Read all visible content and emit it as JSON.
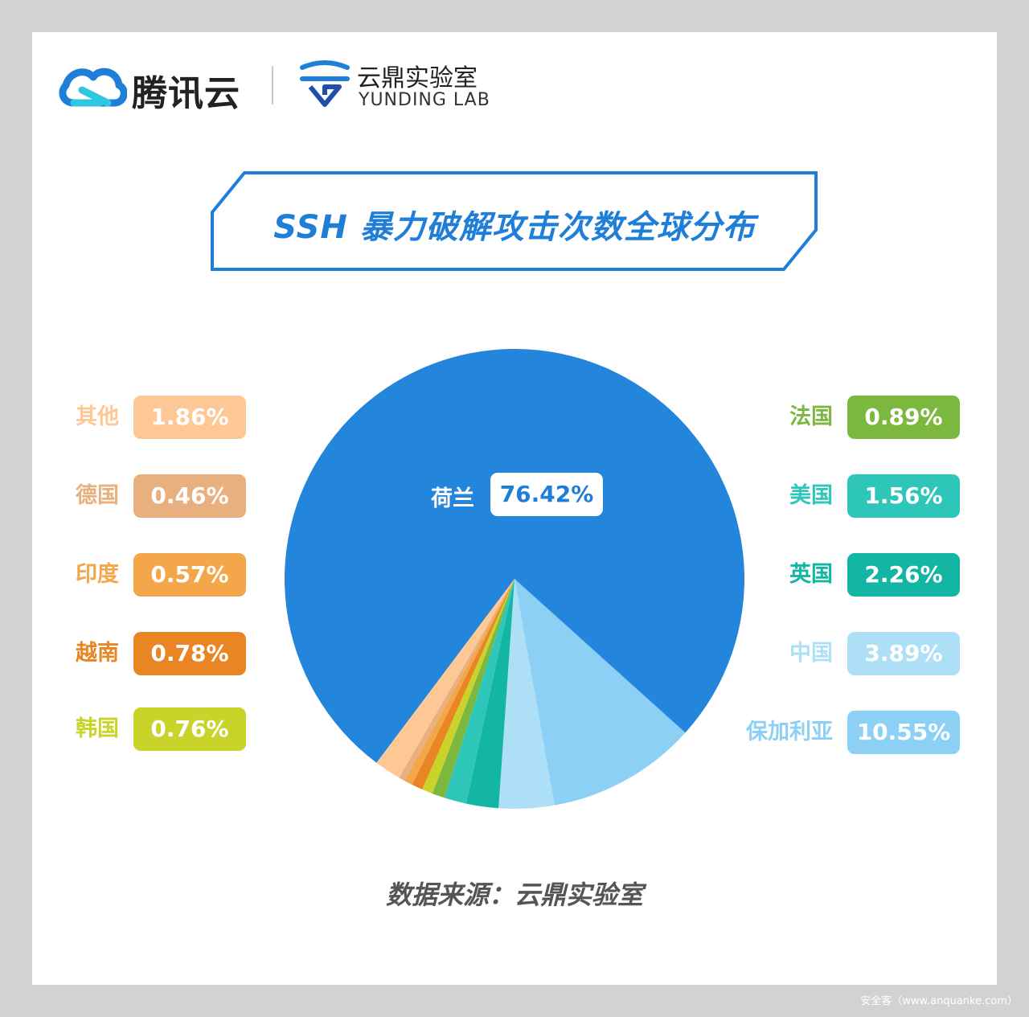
{
  "header": {
    "brand_tencent": "腾讯云",
    "brand_yunding_cn": "云鼎实验室",
    "brand_yunding_en": "YUNDING LAB"
  },
  "source_note": "数据来源：云鼎实验室",
  "watermark": "安全客（www.anquanke.com）",
  "colors": {
    "accent": "#1f7fd8",
    "background": "#d2d2d2",
    "card": "#ffffff"
  },
  "chart_data": {
    "type": "pie",
    "title": "SSH 暴力破解攻击次数全球分布",
    "slices": [
      {
        "label": "荷兰",
        "value": 76.42,
        "display": "76.42%",
        "color": "#2385db"
      },
      {
        "label": "保加利亚",
        "value": 10.55,
        "display": "10.55%",
        "color": "#8cd0f5"
      },
      {
        "label": "中国",
        "value": 3.89,
        "display": "3.89%",
        "color": "#ade0f6"
      },
      {
        "label": "英国",
        "value": 2.26,
        "display": "2.26%",
        "color": "#13b5a3"
      },
      {
        "label": "美国",
        "value": 1.56,
        "display": "1.56%",
        "color": "#2ec6b8"
      },
      {
        "label": "法国",
        "value": 0.89,
        "display": "0.89%",
        "color": "#7cb83f"
      },
      {
        "label": "韩国",
        "value": 0.76,
        "display": "0.76%",
        "color": "#c9d32a"
      },
      {
        "label": "越南",
        "value": 0.78,
        "display": "0.78%",
        "color": "#ea8524"
      },
      {
        "label": "印度",
        "value": 0.57,
        "display": "0.57%",
        "color": "#f3a64a"
      },
      {
        "label": "德国",
        "value": 0.46,
        "display": "0.46%",
        "color": "#e8b07e"
      },
      {
        "label": "其他",
        "value": 1.86,
        "display": "1.86%",
        "color": "#fdc896"
      }
    ]
  }
}
